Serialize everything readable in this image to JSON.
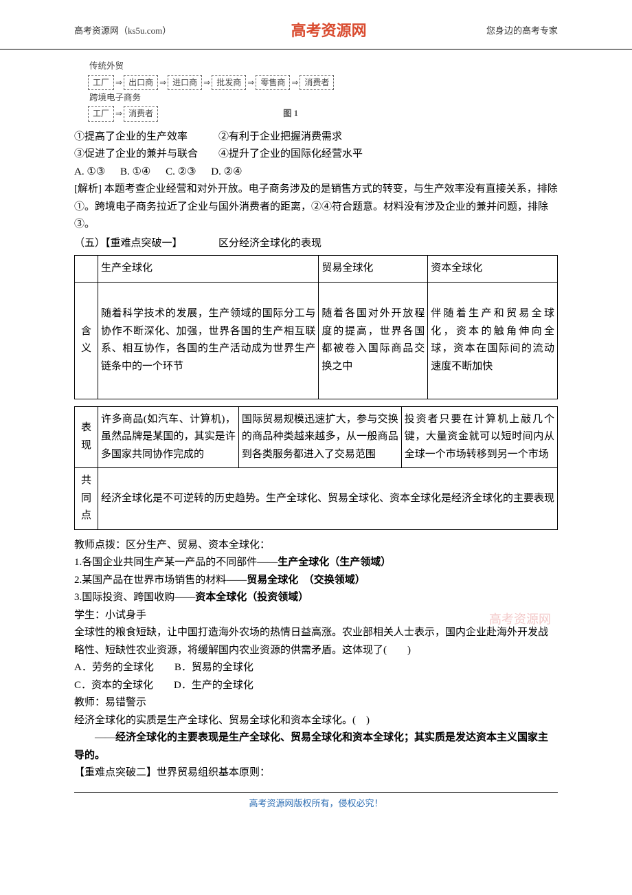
{
  "header": {
    "left": "高考资源网（ks5u.com）",
    "center": "高考资源网",
    "right": "您身边的高考专家"
  },
  "watermark": "高考资源网",
  "diagram": {
    "row1_label": "传统外贸",
    "row1_boxes": [
      "工厂",
      "出口商",
      "进口商",
      "批发商",
      "零售商",
      "消费者"
    ],
    "row2_label": "跨境电子商务",
    "row2_boxes": [
      "工厂",
      "消费者"
    ],
    "figure_label": "图 1",
    "arrow": "⇒"
  },
  "statements": {
    "s1": "①提高了企业的生产效率",
    "s2": "②有利于企业把握消费需求",
    "s3": "③促进了企业的兼并与联合",
    "s4": "④提升了企业的国际化经营水平"
  },
  "options_mc": {
    "a": "A. ①③",
    "b": "B. ①④",
    "c": "C. ②③",
    "d": "D. ②④"
  },
  "analysis": "[解析] 本题考查企业经营和对外开放。电子商务涉及的是销售方式的转变，与生产效率没有直接关系，排除①。跨境电子商务拉近了企业与国外消费者的距离，②④符合题意。材料没有涉及企业的兼并问题，排除③。",
  "breakthrough1_title": "（五）【重难点突破一】　　　　区分经济全球化的表现",
  "table": {
    "col1": "生产全球化",
    "col2": "贸易全球化",
    "col3": "资本全球化",
    "row_def_label": "含义",
    "row_def_c1": "随着科学技术的发展，生产领域的国际分工与协作不断深化、加强，世界各国的生产相互联系、相互协作，各国的生产活动成为世界生产链条中的一个环节",
    "row_def_c2": "随着各国对外开放程度的提高，世界各国都被卷入国际商品交换之中",
    "row_def_c3": "伴随着生产和贸易全球化，资本的触角伸向全球，资本在国际间的流动速度不断加快",
    "row_perf_label": "表现",
    "row_perf_c1": "许多商品(如汽车、计算机)，虽然品牌是某国的，其实是许多国家共同协作完成的",
    "row_perf_c2": "国际贸易规模迅速扩大，参与交换的商品种类越来越多，从一般商品到各类服务都进入了交易范围",
    "row_perf_c3": "投资者只要在计算机上敲几个键，大量资金就可以短时间内从全球一个市场转移到另一个市场",
    "row_common_label": "共同点",
    "row_common": "经济全球化是不可逆转的历史趋势。生产全球化、贸易全球化、资本全球化是经济全球化的主要表现"
  },
  "teacher_tip": "教师点拨：区分生产、贸易、资本全球化：",
  "tips": {
    "t1_pre": "1.各国企业共同生产某一产品的不同部件——",
    "t1_bold": "生产全球化（生产领域）",
    "t2_pre": "2.某国产品在世界市场销售的材料——",
    "t2_bold": "贸易全球化　（交换领域）",
    "t3_pre": "3.国际投资、跨国收购——",
    "t3_bold": "资本全球化（投资领域）"
  },
  "student_try": "学生：小试身手",
  "question2": "全球性的粮食短缺，让中国打造海外农场的热情日益高涨。农业部相关人士表示，国内企业赴海外开发战略性、短缺性农业资源，将缓解国内农业资源的供需矛盾。这体现了(　　)",
  "options2": {
    "a": "A．劳务的全球化",
    "b": "B．贸易的全球化",
    "c": "C．资本的全球化",
    "d": "D．生产的全球化"
  },
  "teacher_warn": "教师：易错警示",
  "tf_statement": "经济全球化的实质是生产全球化、贸易全球化和资本全球化。(　)",
  "tf_answer_pre": "——",
  "tf_answer_bold": "经济全球化的主要表现是生产全球化、贸易全球化和资本全球化；其实质是发达资本主义国家主导的。",
  "breakthrough2": "【重难点突破二】世界贸易组织基本原则：",
  "footer": "高考资源网版权所有，侵权必究！"
}
